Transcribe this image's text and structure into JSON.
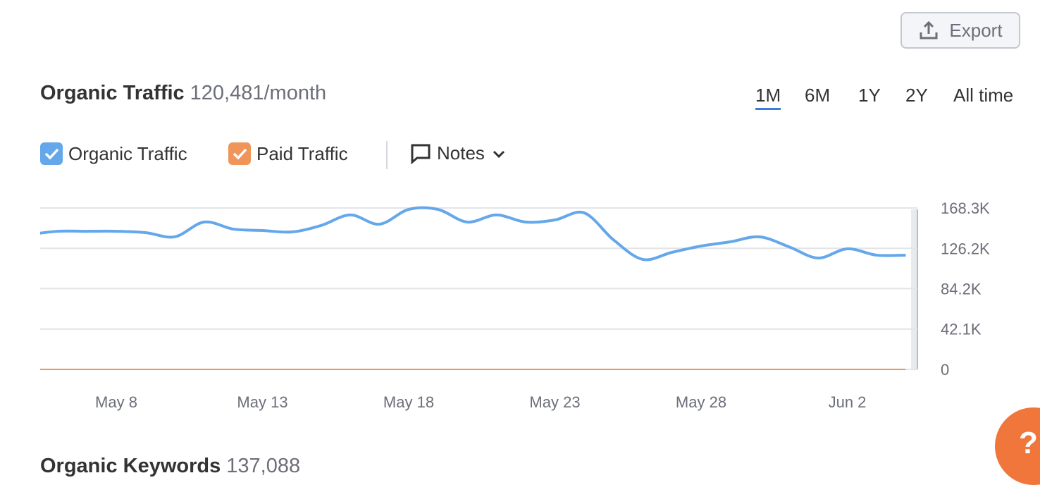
{
  "toolbar": {
    "export": "Export"
  },
  "panel": {
    "title": "Organic Traffic",
    "summary": "120,481/month",
    "ranges": [
      "1M",
      "6M",
      "1Y",
      "2Y",
      "All time"
    ],
    "notes": "Notes"
  },
  "chart_data": {
    "type": "line",
    "categories": [
      null,
      null,
      null,
      "May 8",
      null,
      null,
      null,
      null,
      "May 13",
      null,
      null,
      null,
      null,
      "May 18",
      null,
      null,
      null,
      null,
      "May 23",
      null,
      null,
      null,
      null,
      "May 28",
      null,
      null,
      null,
      null,
      "Jun 2",
      null,
      null
    ],
    "series": [
      {
        "name": "Organic Traffic",
        "color": "#64a7eb",
        "values": [
          140400,
          144000,
          144000,
          144000,
          142600,
          138200,
          153600,
          146300,
          144800,
          143300,
          150000,
          161000,
          151400,
          166800,
          166800,
          153600,
          161000,
          153600,
          155800,
          163200,
          135200,
          114700,
          122000,
          128600,
          133000,
          138200,
          127900,
          116100,
          125700,
          119100,
          119100
        ]
      },
      {
        "name": "Paid Traffic",
        "color": "#f0955a",
        "values": [
          0,
          0,
          0,
          0,
          0,
          0,
          0,
          0,
          0,
          0,
          0,
          0,
          0,
          0,
          0,
          0,
          0,
          0,
          0,
          0,
          0,
          0,
          0,
          0,
          0,
          0,
          0,
          0,
          0,
          0,
          0
        ]
      }
    ],
    "ylim": [
      0,
      168300
    ],
    "yticks": [
      0,
      {
        "value": 42100,
        "label": "42.1K"
      },
      {
        "value": 84200,
        "label": "84.2K"
      },
      {
        "value": 126200,
        "label": "126.2K"
      },
      {
        "value": 168300,
        "label": "168.3K"
      }
    ],
    "grid": true
  },
  "next_section": {
    "title": "Organic Keywords",
    "summary": "137,088"
  },
  "help": "?"
}
